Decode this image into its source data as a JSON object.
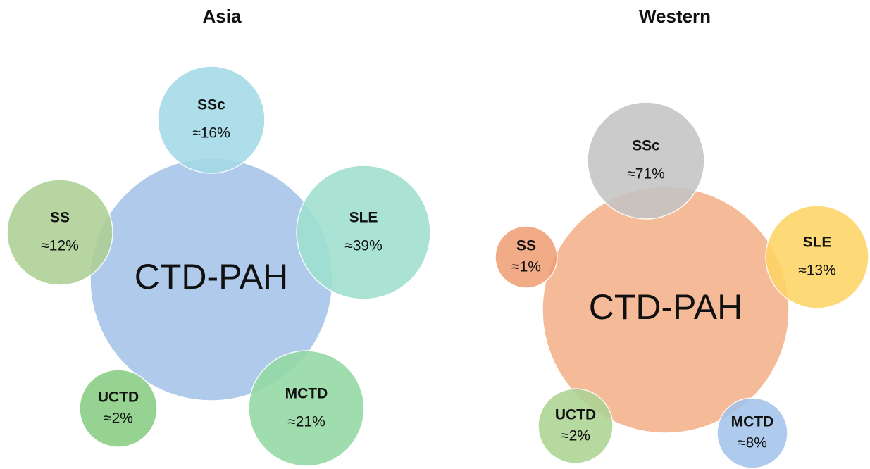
{
  "panels": [
    {
      "title": "Asia",
      "center": {
        "label": "CTD-PAH",
        "color": "#a4c3e8"
      },
      "nodes": [
        {
          "name": "SSc",
          "label": "≈16%",
          "color": "#a3dae6"
        },
        {
          "name": "SLE",
          "label": "≈39%",
          "color": "#9fe0cf"
        },
        {
          "name": "SS",
          "label": "≈12%",
          "color": "#add095"
        },
        {
          "name": "UCTD",
          "label": "≈2%",
          "color": "#88cd84"
        },
        {
          "name": "MCTD",
          "label": "≈21%",
          "color": "#93d9a3"
        }
      ]
    },
    {
      "title": "Western",
      "center": {
        "label": "CTD-PAH",
        "color": "#f4b28a"
      },
      "nodes": [
        {
          "name": "SSc",
          "label": "≈71%",
          "color": "#c4c4c4"
        },
        {
          "name": "SLE",
          "label": "≈13%",
          "color": "#fdd465"
        },
        {
          "name": "SS",
          "label": "≈1%",
          "color": "#f0a077"
        },
        {
          "name": "UCTD",
          "label": "≈2%",
          "color": "#acd494"
        },
        {
          "name": "MCTD",
          "label": "≈8%",
          "color": "#a3c4eb"
        }
      ]
    }
  ]
}
